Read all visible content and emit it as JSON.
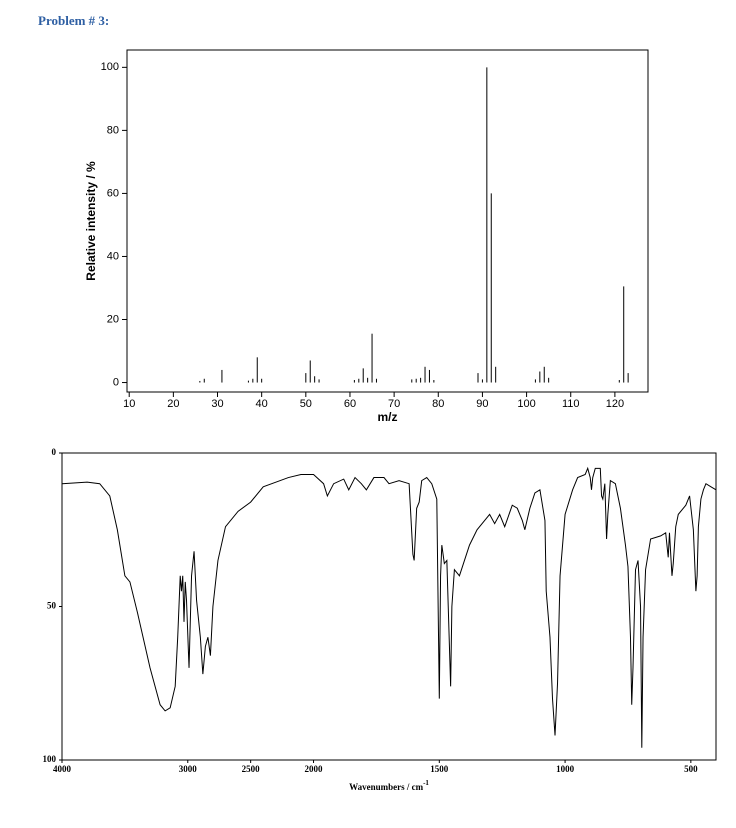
{
  "heading": "Problem # 3:",
  "chart_data": [
    {
      "type": "stem",
      "xlabel": "m/z",
      "ylabel": "Relative intensity / %",
      "color": "#000000",
      "x": [
        26,
        27,
        31,
        37,
        38,
        39,
        40,
        50,
        51,
        52,
        53,
        61,
        62,
        63,
        64,
        65,
        66,
        74,
        75,
        76,
        77,
        78,
        79,
        89,
        90,
        91,
        92,
        93,
        102,
        103,
        104,
        105,
        121,
        122,
        123
      ],
      "values": [
        0.5,
        1.2,
        4,
        0.6,
        1.2,
        8,
        1.2,
        3,
        7,
        2,
        1,
        0.8,
        1.2,
        4.5,
        1.5,
        15.5,
        1.2,
        1,
        1.2,
        1.5,
        5,
        4,
        0.8,
        3,
        1,
        100,
        60,
        5,
        1,
        3.5,
        5,
        1.5,
        0.8,
        30.5,
        3
      ],
      "xlim": [
        9.5,
        127.5
      ],
      "ylim": [
        -3,
        105.5
      ],
      "xticks": [
        10,
        20,
        30,
        40,
        50,
        60,
        70,
        80,
        90,
        100,
        110,
        120
      ],
      "yticks": [
        0,
        20,
        40,
        60,
        80,
        100
      ]
    },
    {
      "type": "line",
      "xlabel": "Wavenumbers / cm",
      "xlabel_superscript": "-1",
      "color": "#000000",
      "xlim": [
        4000,
        400
      ],
      "x_scale_break": 2000,
      "x_scale_ratio": 2,
      "ylim": [
        0,
        100
      ],
      "y_inverted": true,
      "xticks": [
        4000,
        3000,
        2500,
        2000,
        1500,
        1000,
        500
      ],
      "yticks": [
        0,
        50,
        100
      ],
      "x": [
        4000,
        3800,
        3700,
        3620,
        3560,
        3500,
        3460,
        3400,
        3300,
        3220,
        3180,
        3140,
        3100,
        3080,
        3060,
        3050,
        3040,
        3030,
        3020,
        3010,
        2990,
        2970,
        2950,
        2930,
        2900,
        2880,
        2860,
        2840,
        2820,
        2800,
        2760,
        2700,
        2600,
        2500,
        2400,
        2300,
        2200,
        2100,
        2000,
        1960,
        1945,
        1920,
        1880,
        1860,
        1835,
        1810,
        1790,
        1760,
        1720,
        1700,
        1660,
        1620,
        1605,
        1600,
        1590,
        1580,
        1570,
        1550,
        1530,
        1510,
        1500,
        1495,
        1490,
        1480,
        1470,
        1455,
        1450,
        1440,
        1420,
        1400,
        1380,
        1350,
        1320,
        1300,
        1280,
        1260,
        1240,
        1210,
        1190,
        1170,
        1160,
        1140,
        1120,
        1100,
        1080,
        1075,
        1070,
        1060,
        1050,
        1040,
        1030,
        1020,
        1000,
        970,
        950,
        920,
        910,
        900,
        895,
        890,
        880,
        860,
        855,
        850,
        842,
        835,
        830,
        820,
        800,
        790,
        780,
        760,
        750,
        740,
        735,
        730,
        720,
        710,
        700,
        695,
        690,
        680,
        660,
        620,
        600,
        590,
        585,
        575,
        570,
        560,
        550,
        520,
        505,
        490,
        480,
        475,
        470,
        460,
        450,
        440,
        420,
        400
      ],
      "values": [
        10,
        9.5,
        10,
        14,
        25,
        40,
        42,
        52,
        70,
        82,
        84,
        83,
        76,
        60,
        40,
        45,
        40,
        55,
        42,
        48,
        70,
        40,
        32,
        48,
        60,
        72,
        63,
        60,
        66,
        50,
        35,
        24,
        19,
        16,
        11,
        9.5,
        8,
        7,
        7,
        10,
        14,
        10,
        8.5,
        12,
        8,
        10,
        12,
        8,
        8,
        10,
        9,
        10,
        33,
        35,
        18,
        16,
        9,
        8,
        10,
        15,
        80,
        40,
        30,
        36,
        35,
        76,
        50,
        38,
        40,
        35,
        30,
        25,
        22,
        20,
        23,
        20,
        24,
        17,
        18,
        22,
        25,
        18,
        13,
        12,
        22,
        45,
        50,
        60,
        80,
        92,
        75,
        40,
        20,
        12,
        8,
        7,
        5,
        8,
        12,
        8,
        5,
        5,
        14,
        15,
        10,
        28,
        20,
        9,
        10,
        14,
        18,
        30,
        37,
        60,
        82,
        70,
        38,
        35,
        50,
        96,
        60,
        38,
        28,
        27,
        26,
        34,
        26,
        40,
        36,
        24,
        20,
        17,
        14,
        25,
        45,
        40,
        24,
        15,
        12,
        10,
        11,
        12
      ]
    }
  ]
}
